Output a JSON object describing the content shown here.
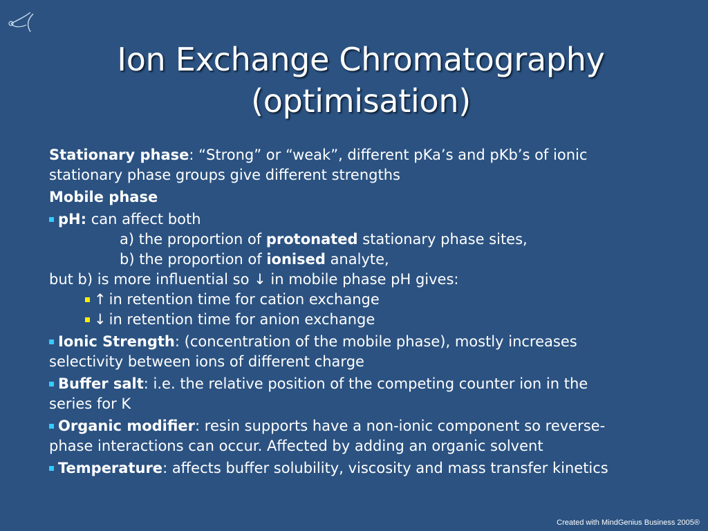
{
  "slide": {
    "title_line1": "Ion Exchange Chromatography",
    "title_line2": "(optimisation)",
    "footer": "Created with MindGenius Business 2005®"
  },
  "content": {
    "stationary_label": "Stationary phase",
    "stationary_text_1": ": “Strong” or “weak”, different pKa’s and pKb’s of ionic",
    "stationary_text_2": "stationary phase groups give different strengths",
    "mobile_heading": "Mobile phase",
    "ph_label": "pH:",
    "ph_text": " can affect both",
    "ph_a_pre": "a) the proportion of ",
    "ph_a_bold": "protonated",
    "ph_a_post": " stationary phase sites,",
    "ph_b_pre": "b) the proportion of ",
    "ph_b_bold": "ionised",
    "ph_b_post": " analyte,",
    "influential_pre": "but b) is more influential so ",
    "influential_arrow": "↓",
    "influential_post": " in mobile phase pH gives:",
    "sub1_arrow": "↑",
    "sub1_text": "in retention time for cation exchange",
    "sub2_arrow": "↓",
    "sub2_text": "in retention time for anion exchange",
    "ionic_label": "Ionic Strength",
    "ionic_text_1": ": (concentration of the mobile phase), mostly increases",
    "ionic_text_2": "selectivity between ions of different charge",
    "buffer_label": "Buffer salt",
    "buffer_text_1": ": i.e. the relative position of the competing counter ion in the",
    "buffer_text_2": "series for K",
    "organic_label": "Organic modifier",
    "organic_text_1": ": resin supports have a non-ionic component so reverse-",
    "organic_text_2": "phase interactions can occur. Affected by adding an organic solvent",
    "temp_label": "Temperature",
    "temp_text": ": affects buffer solubility, viscosity and mass transfer kinetics"
  },
  "colors": {
    "background": "#2b5281",
    "bullet_primary": "#33ccff",
    "bullet_secondary": "#ffee00"
  }
}
